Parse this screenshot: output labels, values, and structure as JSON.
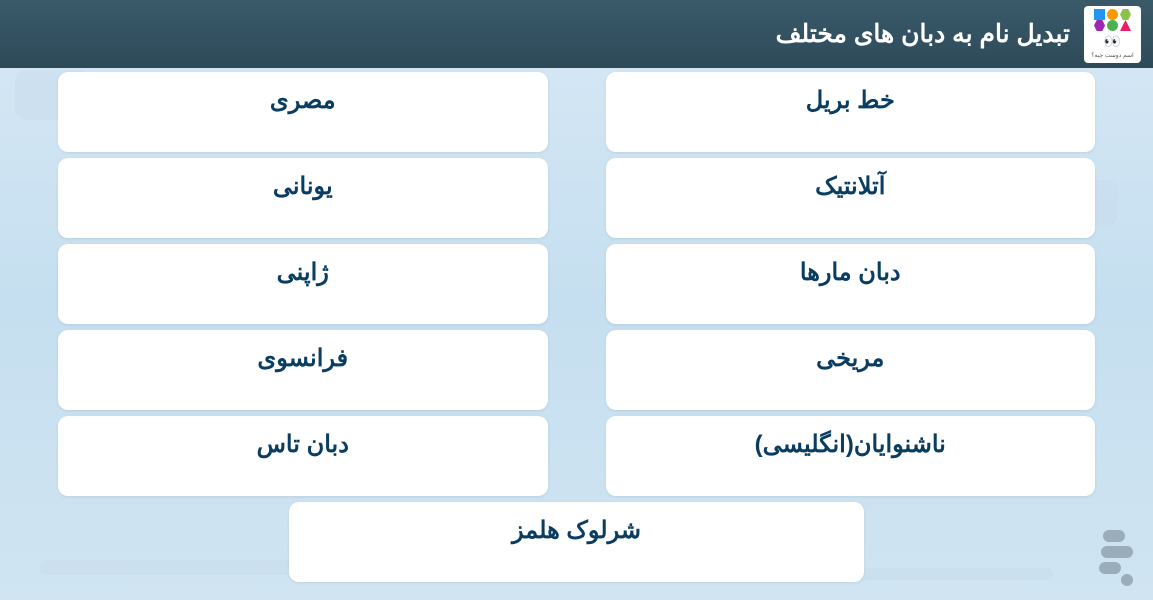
{
  "header": {
    "title": "تبدیل نام به دبان های مختلف",
    "app_name": "اسم دوست چیه؟"
  },
  "languages": {
    "row1": {
      "right": "خط بریل",
      "left": "مصری"
    },
    "row2": {
      "right": "آتلانتیک",
      "left": "یونانی"
    },
    "row3": {
      "right": "دبان مارها",
      "left": "ژاپنی"
    },
    "row4": {
      "right": "مریخی",
      "left": "فرانسوی"
    },
    "row5": {
      "right": "ناشنوایان(انگلیسی)",
      "left": "دبان تاس"
    },
    "row6": {
      "center": "شرلوک هلمز"
    }
  },
  "colors": {
    "card_bg": "#ffffff",
    "text_primary": "#0a3d62",
    "header_bg": "#2d4a58",
    "body_bg": "#d0e4f2"
  }
}
